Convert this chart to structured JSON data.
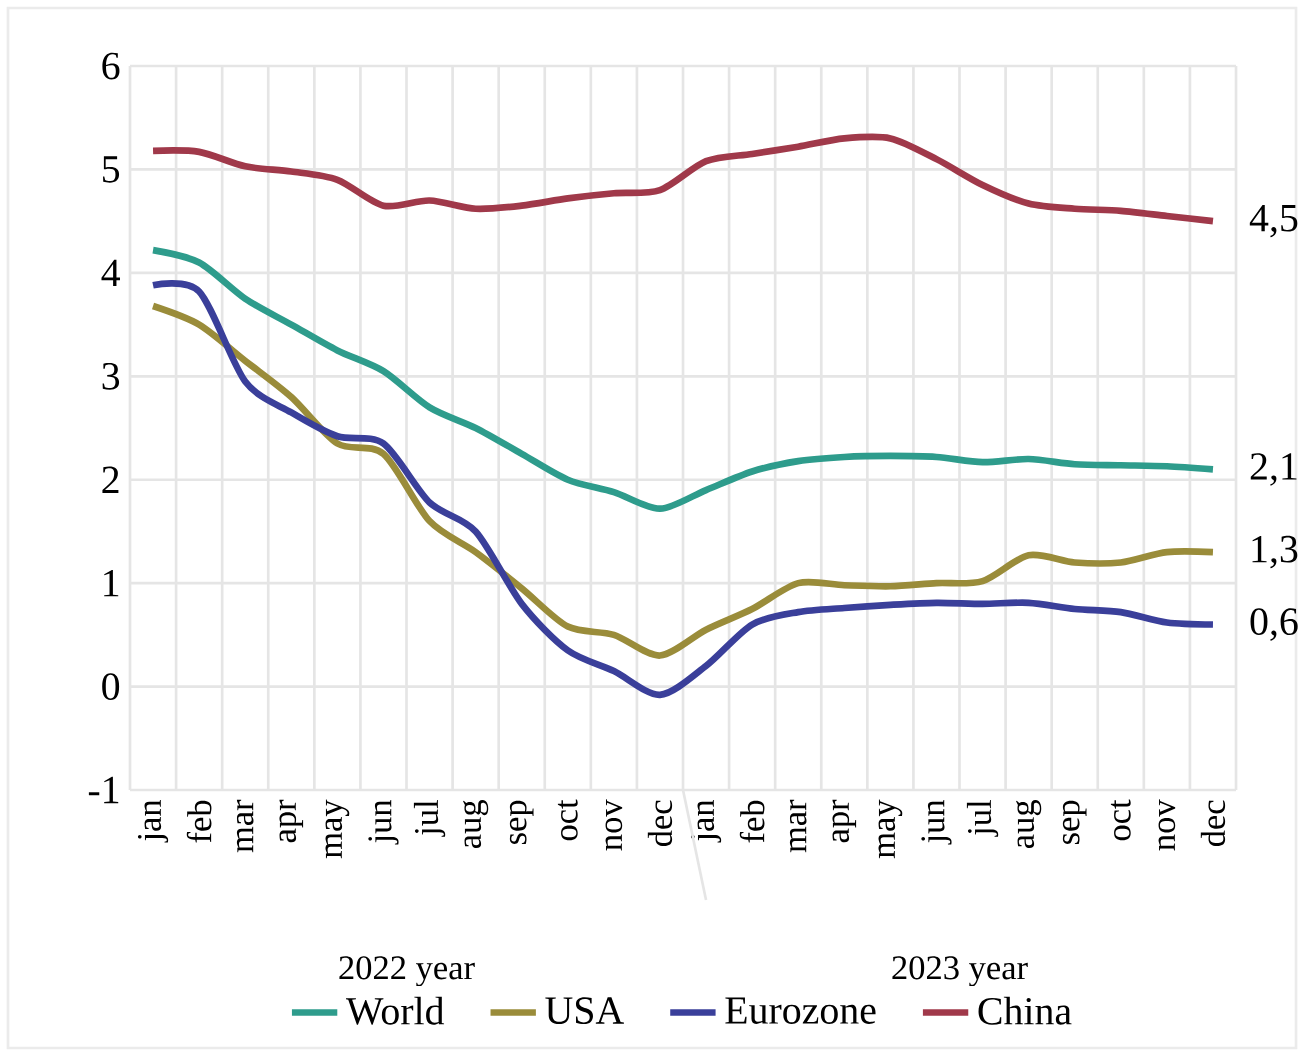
{
  "chart_data": {
    "type": "line",
    "categories": [
      "jan",
      "feb",
      "mar",
      "apr",
      "may",
      "jun",
      "jul",
      "aug",
      "sep",
      "oct",
      "nov",
      "dec",
      "jan",
      "feb",
      "mar",
      "apr",
      "may",
      "jun",
      "jul",
      "aug",
      "sep",
      "oct",
      "nov",
      "dec"
    ],
    "series": [
      {
        "name": "World",
        "color": "#2e9c8c",
        "values": [
          4.22,
          4.1,
          3.75,
          3.5,
          3.25,
          3.05,
          2.7,
          2.5,
          2.25,
          2.0,
          1.88,
          1.72,
          1.9,
          2.08,
          2.18,
          2.22,
          2.23,
          2.22,
          2.17,
          2.2,
          2.15,
          2.14,
          2.13,
          2.1
        ],
        "value_labels": [
          null,
          null,
          null,
          null,
          null,
          null,
          null,
          null,
          null,
          null,
          null,
          null,
          null,
          null,
          null,
          null,
          null,
          null,
          null,
          null,
          null,
          null,
          null,
          "2,1"
        ]
      },
      {
        "name": "USA",
        "color": "#9a8c3a",
        "values": [
          3.68,
          3.5,
          3.15,
          2.8,
          2.35,
          2.25,
          1.6,
          1.3,
          0.95,
          0.58,
          0.5,
          0.3,
          0.55,
          0.75,
          1.0,
          0.98,
          0.97,
          1.0,
          1.02,
          1.27,
          1.2,
          1.2,
          1.3,
          1.3
        ],
        "value_labels": [
          null,
          null,
          null,
          null,
          null,
          null,
          null,
          null,
          null,
          null,
          null,
          null,
          null,
          null,
          null,
          null,
          null,
          null,
          null,
          null,
          null,
          null,
          null,
          "1,3"
        ]
      },
      {
        "name": "Eurozone",
        "color": "#3a3f9a",
        "values": [
          3.88,
          3.82,
          2.95,
          2.65,
          2.42,
          2.35,
          1.78,
          1.5,
          0.8,
          0.35,
          0.15,
          -0.08,
          0.2,
          0.6,
          0.72,
          0.76,
          0.79,
          0.81,
          0.8,
          0.81,
          0.75,
          0.72,
          0.62,
          0.6
        ],
        "value_labels": [
          null,
          null,
          null,
          null,
          null,
          null,
          null,
          null,
          null,
          null,
          null,
          null,
          null,
          null,
          null,
          null,
          null,
          null,
          null,
          null,
          null,
          null,
          null,
          "0,6"
        ]
      },
      {
        "name": "China",
        "color": "#a0394a",
        "values": [
          5.18,
          5.17,
          5.03,
          4.98,
          4.9,
          4.65,
          4.7,
          4.62,
          4.65,
          4.72,
          4.77,
          4.8,
          5.08,
          5.15,
          5.22,
          5.3,
          5.3,
          5.1,
          4.85,
          4.67,
          4.62,
          4.6,
          4.55,
          4.5
        ],
        "value_labels": [
          null,
          null,
          null,
          null,
          null,
          null,
          null,
          null,
          null,
          null,
          null,
          null,
          null,
          null,
          null,
          null,
          null,
          null,
          null,
          null,
          null,
          null,
          null,
          "4,5"
        ]
      }
    ],
    "ylim": [
      -1,
      6
    ],
    "yticks": [
      -1,
      0,
      1,
      2,
      3,
      4,
      5,
      6
    ],
    "annotations": [
      "2022 year",
      "2023 year"
    ],
    "grid": true,
    "legend": "bottom",
    "marker": "none",
    "line_style": "solid"
  }
}
